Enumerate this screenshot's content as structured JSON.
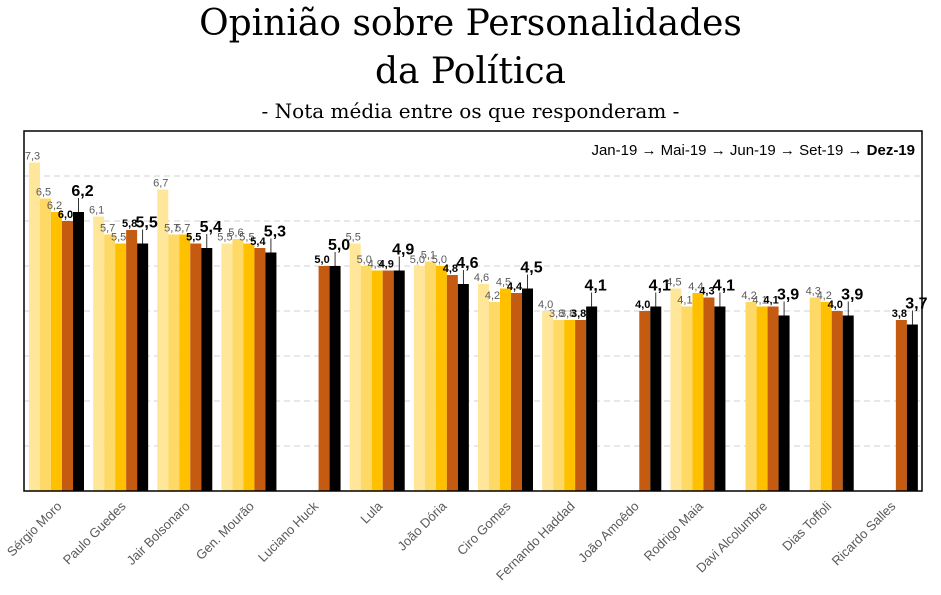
{
  "title_line1": "Opinião sobre Personalidades",
  "title_line2": "da Política",
  "subtitle": "- Nota média entre os que responderam -",
  "legend": {
    "items": [
      "Jan-19",
      "Mai-19",
      "Jun-19",
      "Set-19",
      "Dez-19"
    ],
    "separator": "→",
    "highlight": "Dez-19"
  },
  "colors": {
    "Jan-19": "#FFE699",
    "Mai-19": "#FFD966",
    "Jun-19": "#FFC000",
    "Set-19": "#C55A11",
    "Dez-19": "#000000",
    "grid": "#D9D9D9",
    "frame": "#000000"
  },
  "chart_data": {
    "type": "bar",
    "title": "Opinião sobre Personalidades da Política",
    "subtitle": "- Nota média entre os que responderam -",
    "xlabel": "",
    "ylabel": "",
    "ylim": [
      0,
      8
    ],
    "grid": true,
    "legend_position": "top-right",
    "categories": [
      "Sérgio Moro",
      "Paulo Guedes",
      "Jair Bolsonaro",
      "Gen. Mourão",
      "Luciano Huck",
      "Lula",
      "João Dória",
      "Ciro Gomes",
      "Fernando Haddad",
      "João Amoêdo",
      "Rodrigo Maia",
      "Davi Alcolumbre",
      "Dias Toffoli",
      "Ricardo Salles"
    ],
    "series": [
      {
        "name": "Jan-19",
        "values": [
          7.3,
          6.1,
          6.7,
          5.5,
          null,
          5.5,
          5.0,
          4.6,
          4.0,
          null,
          4.5,
          null,
          null,
          null
        ]
      },
      {
        "name": "Mai-19",
        "values": [
          6.5,
          5.7,
          5.7,
          5.6,
          null,
          5.0,
          5.1,
          4.2,
          3.8,
          null,
          4.1,
          4.2,
          4.3,
          null
        ]
      },
      {
        "name": "Jun-19",
        "values": [
          6.2,
          5.5,
          5.7,
          5.5,
          null,
          4.9,
          5.0,
          4.5,
          3.8,
          null,
          4.4,
          4.1,
          4.2,
          null
        ]
      },
      {
        "name": "Set-19",
        "values": [
          6.0,
          5.8,
          5.5,
          5.4,
          5.0,
          4.9,
          4.8,
          4.4,
          3.8,
          4.0,
          4.3,
          4.1,
          4.0,
          3.8
        ]
      },
      {
        "name": "Dez-19",
        "values": [
          6.2,
          5.5,
          5.4,
          5.3,
          5.0,
          4.9,
          4.6,
          4.5,
          4.1,
          4.1,
          4.1,
          3.9,
          3.9,
          3.7
        ]
      }
    ]
  }
}
